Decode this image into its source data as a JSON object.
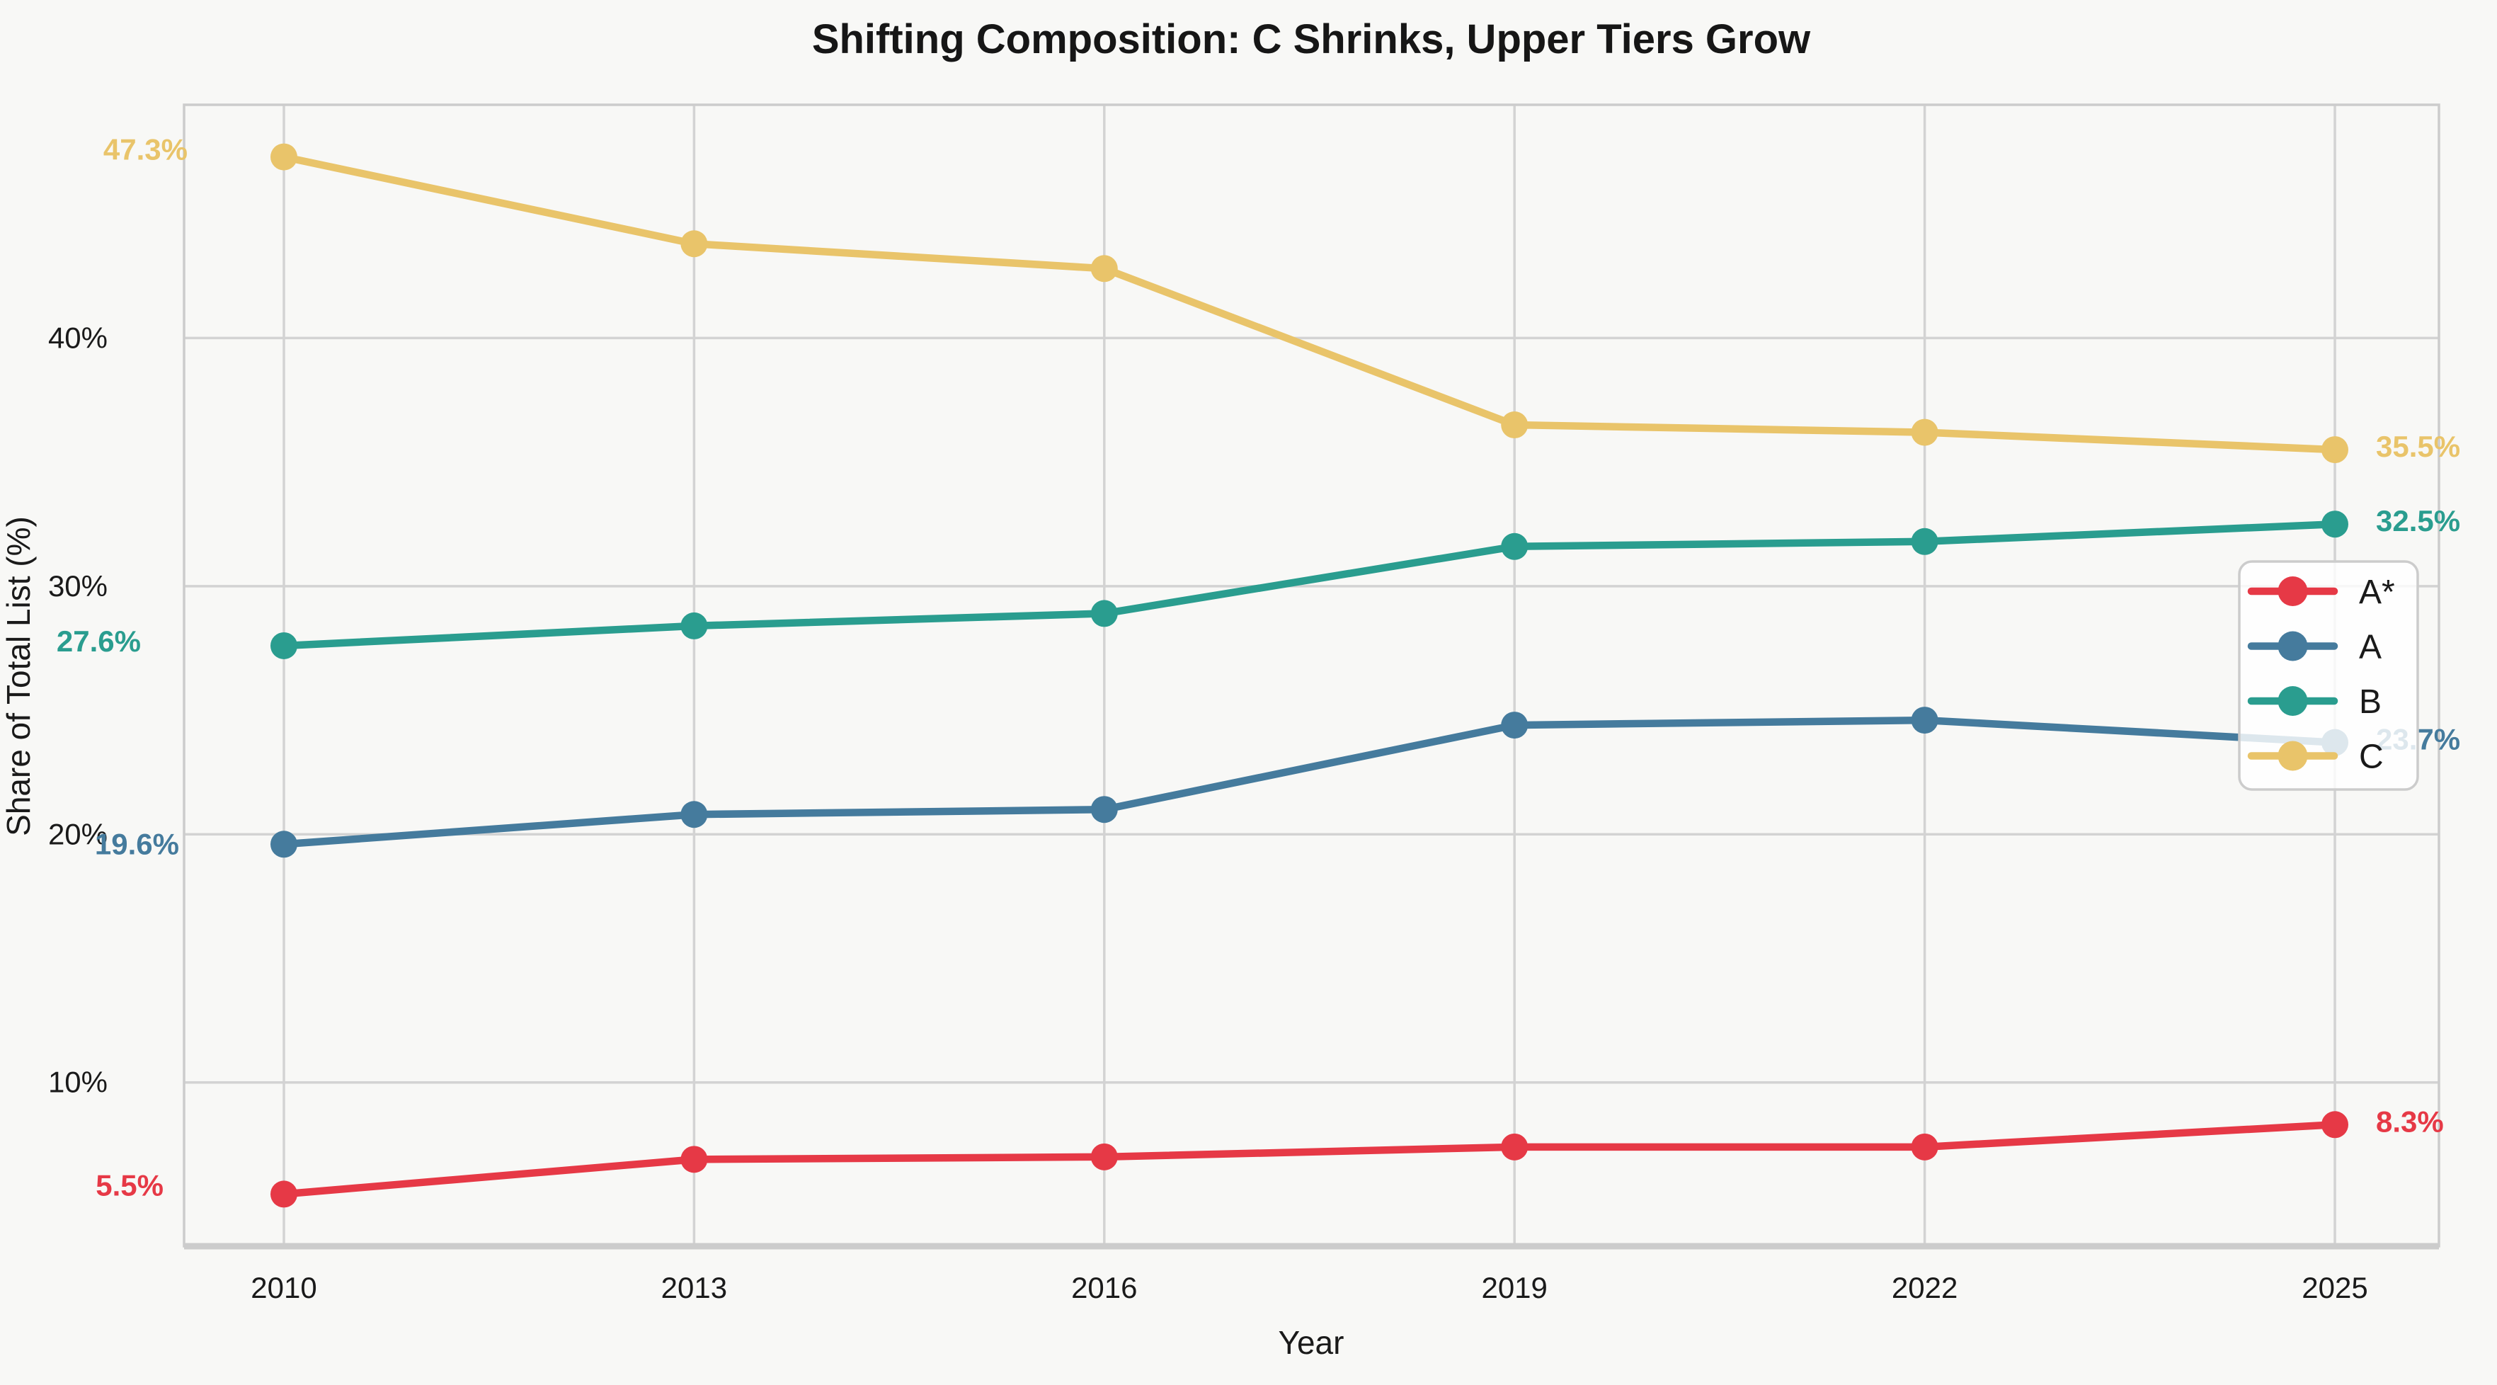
{
  "chart_data": {
    "type": "line",
    "title": "Shifting Composition: C Shrinks, Upper Tiers Grow",
    "xlabel": "Year",
    "ylabel": "Share of Total List (%)",
    "x": [
      2010,
      2013,
      2016,
      2019,
      2022,
      2025
    ],
    "yticks": [
      {
        "label": "10%",
        "value": 10
      },
      {
        "label": "20%",
        "value": 20
      },
      {
        "label": "30%",
        "value": 30
      },
      {
        "label": "40%",
        "value": 40
      }
    ],
    "ylim": [
      3.4,
      49.4
    ],
    "grid": true,
    "legend_position": "center right",
    "legend": [
      "A*",
      "A",
      "B",
      "C"
    ],
    "series": [
      {
        "name": "A*",
        "color": "#e63946",
        "values": [
          5.5,
          6.9,
          7.0,
          7.4,
          7.4,
          8.3
        ],
        "first_label": "5.5%",
        "last_label": "8.3%"
      },
      {
        "name": "A",
        "color": "#457b9d",
        "values": [
          19.6,
          20.8,
          21.0,
          24.4,
          24.6,
          23.7
        ],
        "first_label": "19.6%",
        "last_label": "23.7%"
      },
      {
        "name": "B",
        "color": "#2a9d8f",
        "values": [
          27.6,
          28.4,
          28.9,
          31.6,
          31.8,
          32.5
        ],
        "first_label": "27.6%",
        "last_label": "32.5%"
      },
      {
        "name": "C",
        "color": "#e9c46a",
        "values": [
          47.3,
          43.8,
          42.8,
          36.5,
          36.2,
          35.5
        ],
        "first_label": "47.3%",
        "last_label": "35.5%"
      }
    ]
  },
  "colors": {
    "background": "#f8f8f6",
    "grid": "#d3d3d3",
    "spine": "#cccccc",
    "text": "#1a1a1a",
    "legend_bg": "rgba(255,255,255,0.82)"
  }
}
